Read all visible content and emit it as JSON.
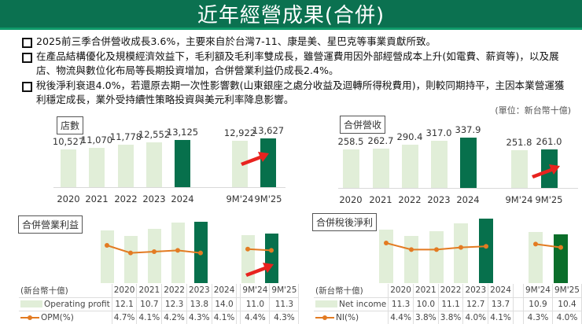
{
  "header": {
    "title": "近年經營成果(合併)"
  },
  "bullets": [
    {
      "text": "2025前三季合併營收成長3.6%，主要來自於台灣7-11、康是美、星巴克等事業貢獻所致。"
    },
    {
      "text": "在產品結構優化及規模經濟效益下，毛利額及毛利率雙成長，雖營運費用因外部經營成本上升(如電費、薪資等)，以及展店、物流與數位化布局等長期投資增加，合併營業利益仍成長2.4%。"
    },
    {
      "text": "稅後淨利衰退4.0%，若還原去期一次性影響數(山東銀座之處分收益及迴轉所得稅費用)，則較同期持平，主因本業營運獲利穩定成長，業外受持續性策略投資與美元利率降息影響。"
    }
  ],
  "unit_note": "(單位：新台幣十億)",
  "colors": {
    "header_bg": "#0b7150",
    "bar_light": "#e1eed8",
    "bar_dark": "#07704c",
    "line": "#e37b22",
    "arrow": "#e8231f"
  },
  "chart_data": [
    {
      "type": "bar",
      "title": "店數",
      "categories": [
        "2020",
        "2021",
        "2022",
        "2023",
        "2024",
        "9M'24",
        "9M'25"
      ],
      "values": [
        10527,
        11070,
        11778,
        12552,
        13125,
        12922,
        13627
      ],
      "labels": [
        "10,527",
        "11,070",
        "11,778",
        "12,552",
        "13,125",
        "12,922",
        "13,627"
      ],
      "highlight": [
        "2024",
        "9M'25"
      ],
      "annotations": [
        "red arrow pointing to 9M'25"
      ]
    },
    {
      "type": "bar",
      "title": "合併營收",
      "unit": "新台幣十億",
      "categories": [
        "2020",
        "2021",
        "2022",
        "2023",
        "2024",
        "9M'24",
        "9M'25"
      ],
      "values": [
        258.5,
        262.7,
        290.4,
        317.0,
        337.9,
        251.8,
        261.0
      ],
      "labels": [
        "258.5",
        "262.7",
        "290.4",
        "317.0",
        "337.9",
        "251.8",
        "261.0"
      ],
      "highlight": [
        "2024",
        "9M'25"
      ],
      "annotations": [
        "red arrow pointing to 9M'25"
      ]
    },
    {
      "type": "bar+line",
      "title": "合併營業利益",
      "unit_label": "(新台幣十億)",
      "categories": [
        "2020",
        "2021",
        "2022",
        "2023",
        "2024",
        "9M'24",
        "9M'25"
      ],
      "series": [
        {
          "name": "Operating profit",
          "type": "bar",
          "values": [
            12.1,
            10.7,
            12.3,
            13.8,
            14.0,
            11.0,
            11.3
          ],
          "labels": [
            "12.1",
            "10.7",
            "12.3",
            "13.8",
            "14.0",
            "11.0",
            "11.3"
          ]
        },
        {
          "name": "OPM(%)",
          "type": "line",
          "values": [
            4.7,
            4.1,
            4.2,
            4.3,
            4.1,
            4.4,
            4.3
          ],
          "labels": [
            "4.7%",
            "4.1%",
            "4.2%",
            "4.3%",
            "4.1%",
            "4.4%",
            "4.3%"
          ]
        }
      ],
      "annotations": [
        "red arrow pointing to 9M'25"
      ]
    },
    {
      "type": "bar+line",
      "title": "合併稅後淨利",
      "unit_label": "(新台幣十億)",
      "categories": [
        "2020",
        "2021",
        "2022",
        "2023",
        "2024",
        "9M'24",
        "9M'25"
      ],
      "series": [
        {
          "name": "Net income",
          "type": "bar",
          "values": [
            11.3,
            10.0,
            11.1,
            12.7,
            13.7,
            10.9,
            10.4
          ],
          "labels": [
            "11.3",
            "10.0",
            "11.1",
            "12.7",
            "13.7",
            "10.9",
            "10.4"
          ]
        },
        {
          "name": "NI(%)",
          "type": "line",
          "values": [
            4.4,
            3.8,
            3.8,
            4.0,
            4.1,
            4.3,
            4.0
          ],
          "labels": [
            "4.4%",
            "3.8%",
            "3.8%",
            "4.0%",
            "4.1%",
            "4.3%",
            "4.0%"
          ]
        }
      ]
    }
  ]
}
